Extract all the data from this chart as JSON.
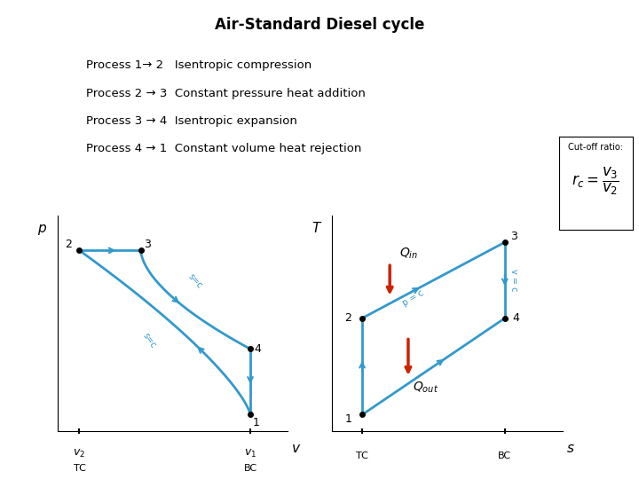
{
  "title": "Air-Standard Diesel cycle",
  "title_fontsize": 12,
  "bg_color": "#ffffff",
  "process_lines": [
    "Process 1→ 2   Isentropic compression",
    "Process 2 → 3  Constant pressure heat addition",
    "Process 3 → 4  Isentropic expansion",
    "Process 4 → 1  Constant volume heat rejection"
  ],
  "cutoff_label": "Cut-off ratio:",
  "curve_color": "#3399cc",
  "heat_arrow_color": "#cc2200",
  "text_color": "#000000",
  "pv": {
    "v1": 0.88,
    "p1": 0.08,
    "v2": 0.1,
    "p2": 0.88,
    "v3": 0.38,
    "p3": 0.88,
    "v4": 0.88,
    "p4": 0.4
  },
  "ts": {
    "s1": 0.13,
    "t1": 0.08,
    "s2": 0.13,
    "t2": 0.55,
    "s3": 0.75,
    "t3": 0.92,
    "s4": 0.75,
    "t4": 0.55
  }
}
